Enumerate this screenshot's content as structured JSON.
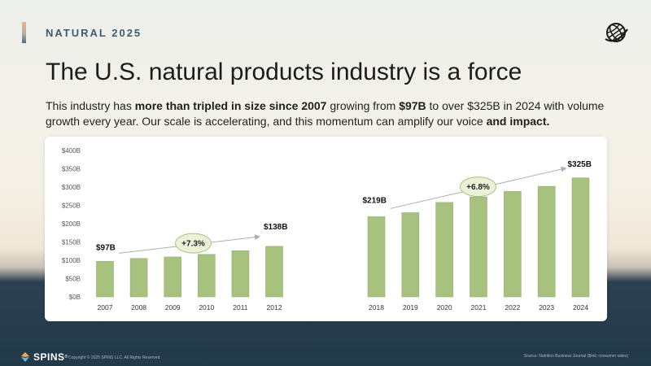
{
  "header": {
    "kicker": "NATURAL 2025",
    "title": "The U.S. natural products industry is a force",
    "subtitle_parts": [
      {
        "text": "This industry has ",
        "bold": false
      },
      {
        "text": "more than tripled in size since 2007",
        "bold": true
      },
      {
        "text": " growing from ",
        "bold": false
      },
      {
        "text": "$97B",
        "bold": true
      },
      {
        "text": " to over $325B   in 2024 with volume growth every year.  Our scale is accelerating, and this momentum can amplify our voice ",
        "bold": false
      },
      {
        "text": "and impact.",
        "bold": true
      }
    ]
  },
  "colors": {
    "bar": "#a7c17f",
    "bar_edge": "#93b06b",
    "bubble_fill": "#eaf2d8",
    "bubble_edge": "#a7c17f",
    "arrow": "#a9b1b6",
    "footer_bg": "#22394a"
  },
  "icons": {
    "top_right": "globe-icon",
    "footer": "spins-logo-icon"
  },
  "chart_data": {
    "type": "bar",
    "categories": [
      "2007",
      "2008",
      "2009",
      "2010",
      "2011",
      "2012",
      "2018",
      "2019",
      "2020",
      "2021",
      "2022",
      "2023",
      "2024"
    ],
    "values": [
      97,
      105,
      109,
      116,
      126,
      138,
      219,
      230,
      258,
      273,
      288,
      302,
      325
    ],
    "unit": "$B",
    "ylim": [
      0,
      400
    ],
    "y_ticks": [
      "$0B",
      "$50B",
      "$100B",
      "$150B",
      "$200B",
      "$250B",
      "$300B",
      "$350B",
      "$400B"
    ],
    "y_tick_values": [
      0,
      50,
      100,
      150,
      200,
      250,
      300,
      350,
      400
    ],
    "grid": false,
    "groups": [
      {
        "categories": [
          "2007",
          "2008",
          "2009",
          "2010",
          "2011",
          "2012"
        ]
      },
      {
        "categories": [
          "2018",
          "2019",
          "2020",
          "2021",
          "2022",
          "2023",
          "2024"
        ]
      }
    ],
    "data_labels": [
      {
        "category": "2007",
        "text": "$97B"
      },
      {
        "category": "2012",
        "text": "$138B"
      },
      {
        "category": "2018",
        "text": "$219B"
      },
      {
        "category": "2024",
        "text": "$325B"
      }
    ],
    "growth_annotations": [
      {
        "from": "2007",
        "to": "2012",
        "text": "+7.3%"
      },
      {
        "from": "2018",
        "to": "2024",
        "text": "+6.8%"
      }
    ]
  },
  "footer": {
    "logo_text": "SPINS",
    "trademark": "®",
    "copyright": "Copyright © 2025 SPINS LLC. All Rights Reserved.",
    "source": "Source: Nutrition Business Journal ($mil; consumer sales)"
  }
}
